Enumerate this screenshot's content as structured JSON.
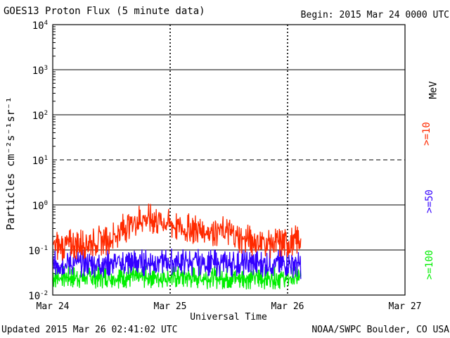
{
  "header": {
    "title": "GOES13 Proton Flux (5 minute data)",
    "begin": "Begin: 2015 Mar 24 0000 UTC"
  },
  "footer": {
    "updated": "Updated 2015 Mar 26 02:41:02 UTC",
    "credit": "NOAA/SWPC Boulder, CO USA"
  },
  "legend": {
    "unit": "MeV",
    "items": [
      {
        "label": ">=10",
        "color": "#ff2a00"
      },
      {
        "label": ">=50",
        "color": "#3300ff"
      },
      {
        "label": ">=100",
        "color": "#00ee00"
      }
    ]
  },
  "chart_data": {
    "type": "line",
    "title": "GOES13 Proton Flux (5 minute data)",
    "xlabel": "Universal Time",
    "ylabel": "Particles cm⁻²s⁻¹sr⁻¹",
    "yscale": "log",
    "ylim": [
      0.01,
      10000
    ],
    "yticks": [
      {
        "value": 0.01,
        "base": "10",
        "exp": "-2"
      },
      {
        "value": 0.1,
        "base": "10",
        "exp": "-1"
      },
      {
        "value": 1,
        "base": "10",
        "exp": "0"
      },
      {
        "value": 10,
        "base": "10",
        "exp": "1"
      },
      {
        "value": 100,
        "base": "10",
        "exp": "2"
      },
      {
        "value": 1000,
        "base": "10",
        "exp": "3"
      },
      {
        "value": 10000,
        "base": "10",
        "exp": "4"
      }
    ],
    "xlim_days": [
      0,
      3
    ],
    "xticks": [
      {
        "day": 0,
        "label": "Mar 24"
      },
      {
        "day": 1,
        "label": "Mar 25"
      },
      {
        "day": 2,
        "label": "Mar 26"
      },
      {
        "day": 3,
        "label": "Mar 27"
      }
    ],
    "reference_lines": [
      {
        "value": 10,
        "style": "dashed"
      }
    ],
    "grid": "solid at decades",
    "data_end_day": 2.1125,
    "series": [
      {
        "name": ">=10 MeV",
        "color": "#ff2a00",
        "x_day": [
          0,
          0.25,
          0.5,
          0.6,
          0.75,
          0.9,
          1.0,
          1.1,
          1.25,
          1.5,
          1.6,
          1.75,
          1.9,
          2.0,
          2.1125
        ],
        "y": [
          0.12,
          0.14,
          0.18,
          0.3,
          0.5,
          0.45,
          0.38,
          0.3,
          0.28,
          0.25,
          0.18,
          0.15,
          0.14,
          0.14,
          0.17
        ]
      },
      {
        "name": ">=50 MeV",
        "color": "#3300ff",
        "x_day": [
          0,
          0.5,
          1.0,
          1.5,
          2.0,
          2.1125
        ],
        "y": [
          0.05,
          0.05,
          0.055,
          0.05,
          0.05,
          0.045
        ]
      },
      {
        "name": ">=100 MeV",
        "color": "#00ee00",
        "x_day": [
          0,
          0.5,
          1.0,
          1.5,
          2.0,
          2.1125
        ],
        "y": [
          0.025,
          0.025,
          0.025,
          0.024,
          0.024,
          0.024
        ]
      }
    ]
  }
}
